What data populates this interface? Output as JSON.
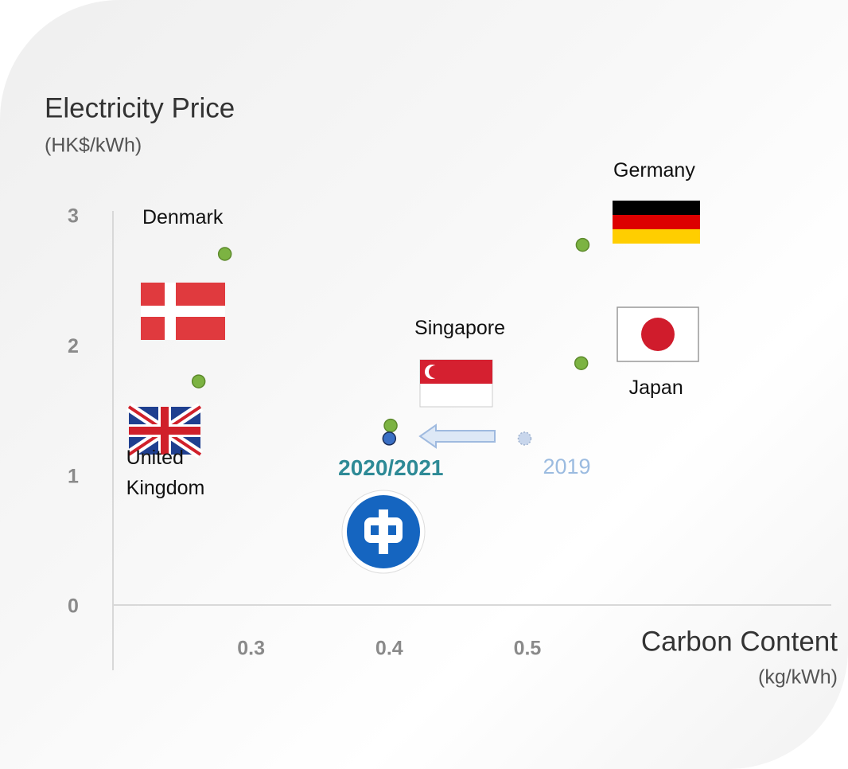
{
  "chart_data": {
    "type": "scatter",
    "ylabel": "Electricity Price",
    "ylabel_unit": "(HK$/kWh)",
    "xlabel": "Carbon Content",
    "xlabel_unit": "(kg/kWh)",
    "xlim": [
      0.2,
      0.72
    ],
    "ylim": [
      0,
      3
    ],
    "xticks": [
      0.3,
      0.4,
      0.5
    ],
    "yticks": [
      0,
      1,
      2,
      3
    ],
    "points": [
      {
        "label": "Denmark",
        "x": 0.281,
        "y": 2.7,
        "color": "#7cb342"
      },
      {
        "label": "United Kingdom",
        "x": 0.262,
        "y": 1.72,
        "color": "#7cb342"
      },
      {
        "label": "Singapore",
        "x": 0.401,
        "y": 1.38,
        "color": "#7cb342"
      },
      {
        "label": "Germany",
        "x": 0.54,
        "y": 2.77,
        "color": "#7cb342"
      },
      {
        "label": "Japan",
        "x": 0.539,
        "y": 1.86,
        "color": "#7cb342"
      },
      {
        "label": "2020/2021",
        "x": 0.4,
        "y": 1.28,
        "color": "#3a6fc4"
      },
      {
        "label": "2019",
        "x": 0.498,
        "y": 1.28,
        "color": "#c8d6ec"
      }
    ]
  }
}
